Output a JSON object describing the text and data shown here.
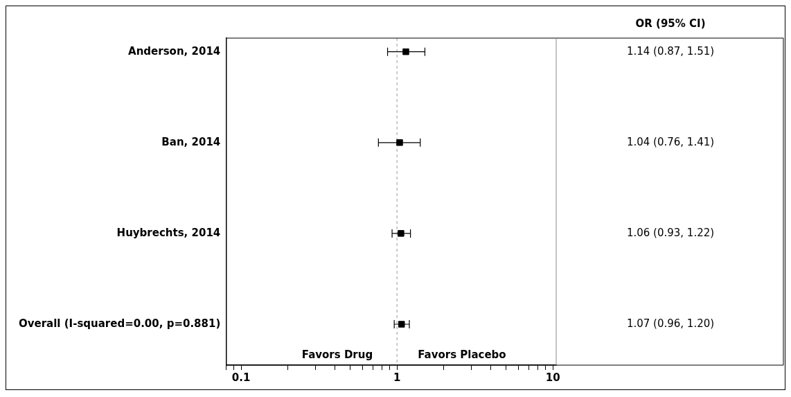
{
  "chart_data": {
    "type": "scatter",
    "orientation": "horizontal",
    "categories": [
      "Anderson, 2014",
      "Ban, 2014",
      "Huybrechts, 2014",
      "Overall (I-squared=0.00, p=0.881)"
    ],
    "values": [
      1.14,
      1.04,
      1.06,
      1.07
    ],
    "errors": [
      [
        0.87,
        1.51
      ],
      [
        0.76,
        1.41
      ],
      [
        0.93,
        1.22
      ],
      [
        0.96,
        1.2
      ]
    ],
    "value_labels": [
      "1.14 (0.87, 1.51)",
      "1.04 (0.76, 1.41)",
      "1.06 (0.93, 1.22)",
      "1.07 (0.96, 1.20)"
    ],
    "color": "#000000",
    "marker": "square",
    "log": "x",
    "grid": false,
    "legend": false,
    "xlim": [
      0.08,
      10.5
    ],
    "xticks": [
      {
        "value": 0.08,
        "label": null
      },
      {
        "value": 0.09,
        "label": null
      },
      0.1,
      {
        "value": 0.2,
        "label": null
      },
      {
        "value": 0.3,
        "label": null
      },
      {
        "value": 0.4,
        "label": null
      },
      {
        "value": 0.5,
        "label": null
      },
      {
        "value": 0.6,
        "label": null
      },
      {
        "value": 0.7,
        "label": null
      },
      {
        "value": 0.8,
        "label": null
      },
      {
        "value": 0.9,
        "label": null
      },
      1,
      {
        "value": 2,
        "label": null
      },
      {
        "value": 3,
        "label": null
      },
      {
        "value": 4,
        "label": null
      },
      {
        "value": 5,
        "label": null
      },
      {
        "value": 6,
        "label": null
      },
      {
        "value": 7,
        "label": null
      },
      {
        "value": 8,
        "label": null
      },
      {
        "value": 9,
        "label": null
      },
      10
    ],
    "ref_lines": [
      {
        "axis": "x",
        "value": 1,
        "line_style": "dashed",
        "color": "#999999"
      }
    ],
    "annotations": [
      "OR (95% CI)",
      "Favors Drug",
      "Favors Placebo"
    ]
  }
}
